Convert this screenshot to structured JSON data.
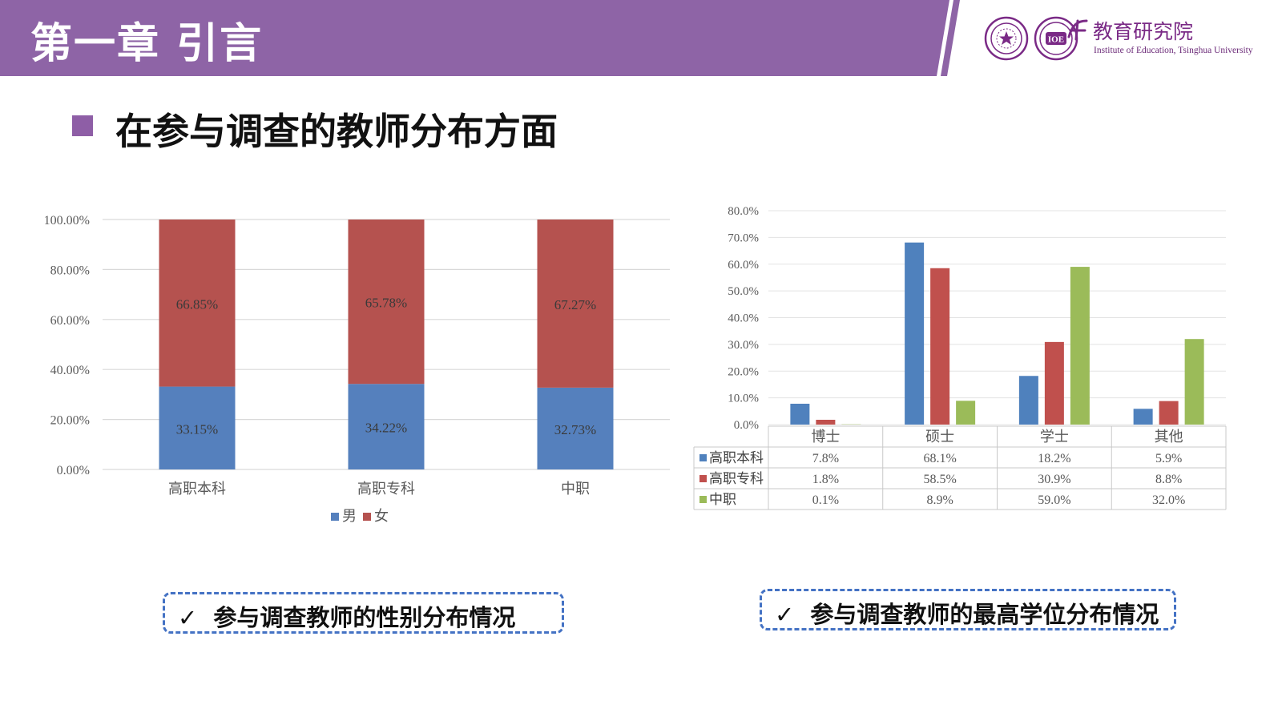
{
  "header": {
    "chapter_title": "第一章  引言",
    "institution_cn": "教育研究院",
    "institution_en": "Institute of Education, Tsinghua University",
    "bar_color": "#8e64a6"
  },
  "section": {
    "subtitle": "在参与调查的教师分布方面"
  },
  "chart_data": [
    {
      "type": "bar",
      "stacked": true,
      "categories": [
        "高职本科",
        "高职专科",
        "中职"
      ],
      "series": [
        {
          "name": "男",
          "values": [
            33.15,
            34.22,
            32.73
          ],
          "labels": [
            "33.15%",
            "34.22%",
            "32.73%"
          ],
          "color": "#5580bd"
        },
        {
          "name": "女",
          "values": [
            66.85,
            65.78,
            67.27
          ],
          "labels": [
            "66.85%",
            "65.78%",
            "67.27%"
          ],
          "color": "#b5524f"
        }
      ],
      "yticks": [
        "0.00%",
        "20.00%",
        "40.00%",
        "60.00%",
        "80.00%",
        "100.00%"
      ],
      "ylim": [
        0,
        100
      ],
      "grid": true,
      "legend": "bottom"
    },
    {
      "type": "bar",
      "categories": [
        "博士",
        "硕士",
        "学士",
        "其他"
      ],
      "series": [
        {
          "name": "高职本科",
          "values": [
            7.8,
            68.1,
            18.2,
            5.9
          ],
          "labels": [
            "7.8%",
            "68.1%",
            "18.2%",
            "5.9%"
          ],
          "color": "#4f81bd"
        },
        {
          "name": "高职专科",
          "values": [
            1.8,
            58.5,
            30.9,
            8.8
          ],
          "labels": [
            "1.8%",
            "58.5%",
            "30.9%",
            "8.8%"
          ],
          "color": "#c0504d"
        },
        {
          "name": "中职",
          "values": [
            0.1,
            8.9,
            59.0,
            32.0
          ],
          "labels": [
            "0.1%",
            "8.9%",
            "59.0%",
            "32.0%"
          ],
          "color": "#9bbb59"
        }
      ],
      "yticks": [
        "0.0%",
        "10.0%",
        "20.0%",
        "30.0%",
        "40.0%",
        "50.0%",
        "60.0%",
        "70.0%",
        "80.0%"
      ],
      "ylim": [
        0,
        80
      ],
      "grid": true,
      "legend": "data-table"
    }
  ],
  "captions": {
    "check": "✓",
    "left": "参与调查教师的性别分布情况",
    "right": "参与调查教师的最高学位分布情况"
  }
}
